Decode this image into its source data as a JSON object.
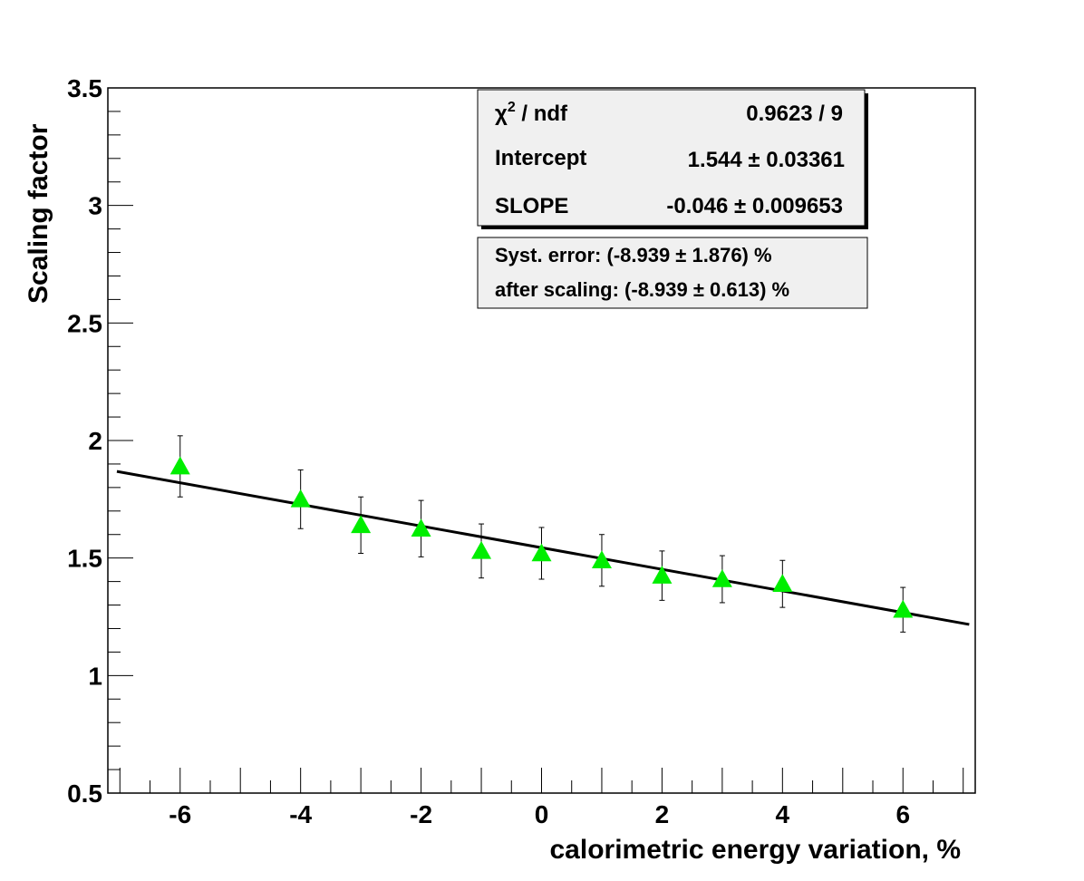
{
  "chart_data": {
    "type": "scatter",
    "xlabel": "calorimetric energy variation, %",
    "ylabel": "Scaling factor",
    "xlim": [
      -7.2,
      7.2
    ],
    "ylim": [
      0.5,
      3.5
    ],
    "x_ticks": [
      -6,
      -4,
      -2,
      0,
      2,
      4,
      6
    ],
    "x_tick_labels": [
      "-6",
      "-4",
      "-2",
      "0",
      "2",
      "4",
      "6"
    ],
    "y_ticks": [
      0.5,
      1,
      1.5,
      2,
      2.5,
      3,
      3.5
    ],
    "y_tick_labels": [
      "0.5",
      "1",
      "1.5",
      "2",
      "2.5",
      "3",
      "3.5"
    ],
    "grid": false,
    "marker_color": "#00ee00",
    "fit_color": "#000000",
    "points": [
      {
        "x": -6,
        "y": 1.89,
        "err": 0.13
      },
      {
        "x": -4,
        "y": 1.75,
        "err": 0.125
      },
      {
        "x": -3,
        "y": 1.64,
        "err": 0.12
      },
      {
        "x": -2,
        "y": 1.625,
        "err": 0.12
      },
      {
        "x": -1,
        "y": 1.53,
        "err": 0.115
      },
      {
        "x": 0,
        "y": 1.52,
        "err": 0.11
      },
      {
        "x": 1,
        "y": 1.49,
        "err": 0.11
      },
      {
        "x": 2,
        "y": 1.425,
        "err": 0.105
      },
      {
        "x": 3,
        "y": 1.41,
        "err": 0.1
      },
      {
        "x": 4,
        "y": 1.39,
        "err": 0.1
      },
      {
        "x": 6,
        "y": 1.28,
        "err": 0.095
      }
    ],
    "fit": {
      "intercept": 1.544,
      "slope": -0.046,
      "x_range": [
        -7.2,
        7.2
      ]
    },
    "stats_box": {
      "rows": [
        {
          "label_main": "χ",
          "label_sup": "2",
          "label_rest": " / ndf",
          "value": "0.9623 / 9"
        },
        {
          "label": "Intercept",
          "value": "1.544 ± 0.03361"
        },
        {
          "label": "SLOPE",
          "value": "-0.046 ± 0.009653"
        }
      ]
    },
    "syst_box": {
      "lines": [
        "Syst. error: (-8.939 ± 1.876) %",
        "after scaling: (-8.939 ± 0.613) %"
      ]
    }
  }
}
